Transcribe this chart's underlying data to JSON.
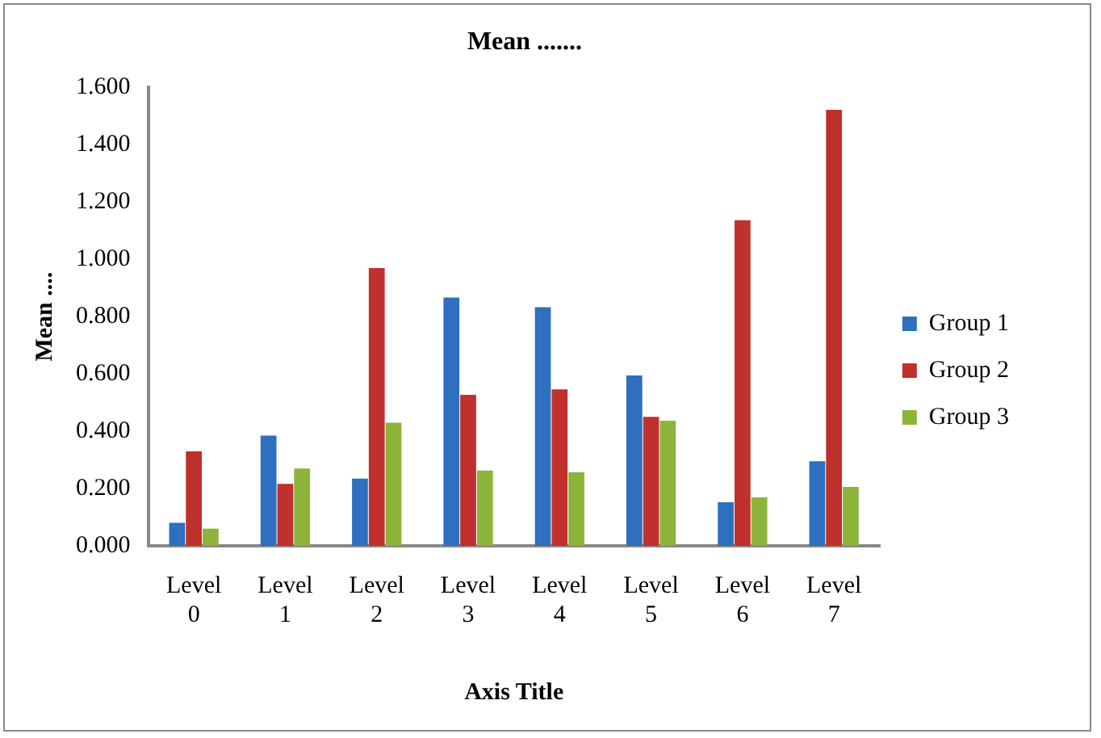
{
  "chart_data": {
    "type": "bar",
    "title": "Mean .......",
    "xlabel": "Axis Title",
    "ylabel": "Mean ....",
    "categories": [
      "Level 0",
      "Level 1",
      "Level 2",
      "Level 3",
      "Level 4",
      "Level 5",
      "Level 6",
      "Level 7"
    ],
    "series": [
      {
        "name": "Group 1",
        "color": "#2f6fbf",
        "values": [
          0.08,
          0.385,
          0.235,
          0.867,
          0.833,
          0.595,
          0.152,
          0.295
        ]
      },
      {
        "name": "Group 2",
        "color": "#c0302c",
        "values": [
          0.33,
          0.216,
          0.97,
          0.527,
          0.546,
          0.45,
          1.137,
          1.522
        ]
      },
      {
        "name": "Group 3",
        "color": "#8cb43a",
        "values": [
          0.06,
          0.27,
          0.43,
          0.263,
          0.257,
          0.437,
          0.169,
          0.206
        ]
      }
    ],
    "ylim": [
      0,
      1.6
    ],
    "yticks": [
      {
        "value": 0,
        "label": "0.000"
      },
      {
        "value": 0.2,
        "label": "0.200"
      },
      {
        "value": 0.4,
        "label": "0.400"
      },
      {
        "value": 0.6,
        "label": "0.600"
      },
      {
        "value": 0.8,
        "label": "0.800"
      },
      {
        "value": 1,
        "label": "1.000"
      },
      {
        "value": 1.2,
        "label": "1.200"
      },
      {
        "value": 1.4,
        "label": "1.400"
      },
      {
        "value": 1.6,
        "label": "1.600"
      }
    ],
    "grid": false,
    "legend": "right"
  }
}
